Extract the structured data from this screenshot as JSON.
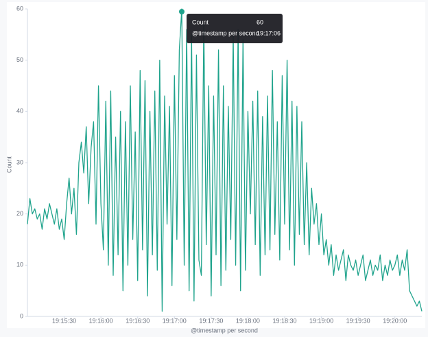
{
  "chart_data": {
    "type": "line",
    "x_label": "@timestamp per second",
    "y_label": "Count",
    "x": [
      "19:15:00",
      "19:15:02",
      "19:15:04",
      "19:15:06",
      "19:15:08",
      "19:15:10",
      "19:15:12",
      "19:15:14",
      "19:15:16",
      "19:15:18",
      "19:15:20",
      "19:15:22",
      "19:15:24",
      "19:15:26",
      "19:15:28",
      "19:15:30",
      "19:15:32",
      "19:15:34",
      "19:15:36",
      "19:15:38",
      "19:15:40",
      "19:15:42",
      "19:15:44",
      "19:15:46",
      "19:15:48",
      "19:15:50",
      "19:15:52",
      "19:15:54",
      "19:15:56",
      "19:15:58",
      "19:16:00",
      "19:16:02",
      "19:16:04",
      "19:16:06",
      "19:16:08",
      "19:16:10",
      "19:16:12",
      "19:16:14",
      "19:16:16",
      "19:16:18",
      "19:16:20",
      "19:16:22",
      "19:16:24",
      "19:16:26",
      "19:16:28",
      "19:16:30",
      "19:16:32",
      "19:16:34",
      "19:16:36",
      "19:16:38",
      "19:16:40",
      "19:16:42",
      "19:16:44",
      "19:16:46",
      "19:16:48",
      "19:16:50",
      "19:16:52",
      "19:16:54",
      "19:16:56",
      "19:16:58",
      "19:17:00",
      "19:17:02",
      "19:17:04",
      "19:17:06",
      "19:17:08",
      "19:17:10",
      "19:17:12",
      "19:17:14",
      "19:17:16",
      "19:17:18",
      "19:17:20",
      "19:17:22",
      "19:17:24",
      "19:17:26",
      "19:17:28",
      "19:17:30",
      "19:17:32",
      "19:17:34",
      "19:17:36",
      "19:17:38",
      "19:17:40",
      "19:17:42",
      "19:17:44",
      "19:17:46",
      "19:17:48",
      "19:17:50",
      "19:17:52",
      "19:17:54",
      "19:17:56",
      "19:17:58",
      "19:18:00",
      "19:18:02",
      "19:18:04",
      "19:18:06",
      "19:18:08",
      "19:18:10",
      "19:18:12",
      "19:18:14",
      "19:18:16",
      "19:18:18",
      "19:18:20",
      "19:18:22",
      "19:18:24",
      "19:18:26",
      "19:18:28",
      "19:18:30",
      "19:18:32",
      "19:18:34",
      "19:18:36",
      "19:18:38",
      "19:18:40",
      "19:18:42",
      "19:18:44",
      "19:18:46",
      "19:18:48",
      "19:18:50",
      "19:18:52",
      "19:18:54",
      "19:18:56",
      "19:18:58",
      "19:19:00",
      "19:19:02",
      "19:19:04",
      "19:19:06",
      "19:19:08",
      "19:19:10",
      "19:19:12",
      "19:19:14",
      "19:19:16",
      "19:19:18",
      "19:19:20",
      "19:19:22",
      "19:19:24",
      "19:19:26",
      "19:19:28",
      "19:19:30",
      "19:19:32",
      "19:19:34",
      "19:19:36",
      "19:19:38",
      "19:19:40",
      "19:19:42",
      "19:19:44",
      "19:19:46",
      "19:19:48",
      "19:19:50",
      "19:19:52",
      "19:19:54",
      "19:19:56",
      "19:19:58",
      "19:20:00",
      "19:20:02",
      "19:20:04",
      "19:20:06",
      "19:20:08",
      "19:20:10",
      "19:20:12",
      "19:20:14",
      "19:20:16",
      "19:20:18",
      "19:20:20",
      "19:20:22"
    ],
    "series": [
      {
        "name": "Count",
        "color": "#1fa38c",
        "values": [
          18,
          23,
          20,
          21,
          19,
          20,
          17,
          21,
          19,
          22,
          20,
          18,
          21,
          17,
          19,
          15,
          22,
          27,
          20,
          25,
          16,
          30,
          34,
          28,
          37,
          22,
          33,
          38,
          18,
          45,
          22,
          13,
          42,
          10,
          44,
          8,
          35,
          12,
          40,
          5,
          38,
          10,
          45,
          15,
          36,
          7,
          48,
          13,
          46,
          4,
          40,
          12,
          44,
          9,
          50,
          1,
          43,
          18,
          41,
          6,
          47,
          15,
          52,
          60,
          10,
          56,
          5,
          55,
          3,
          51,
          11,
          8,
          57,
          14,
          45,
          4,
          43,
          12,
          52,
          6,
          45,
          9,
          41,
          15,
          55,
          10,
          56,
          5,
          54,
          9,
          40,
          20,
          42,
          14,
          44,
          8,
          39,
          12,
          43,
          13,
          48,
          16,
          38,
          11,
          47,
          18,
          50,
          13,
          42,
          10,
          41,
          16,
          38,
          14,
          30,
          12,
          25,
          18,
          22,
          14,
          20,
          12,
          15,
          10,
          14,
          8,
          12,
          9,
          11,
          13,
          7,
          12,
          10,
          9,
          11,
          8,
          10,
          12,
          7,
          9,
          11,
          8,
          10,
          9,
          12,
          7,
          10,
          8,
          11,
          9,
          10,
          12,
          8,
          11,
          9,
          13,
          5,
          4,
          3,
          2,
          3,
          1
        ]
      }
    ],
    "xlim": [
      "19:15:00",
      "19:20:22"
    ],
    "xticks": [
      "19:15:30",
      "19:16:00",
      "19:16:30",
      "19:17:00",
      "19:17:30",
      "19:18:00",
      "19:18:30",
      "19:19:00",
      "19:19:30",
      "19:20:00"
    ],
    "ylim": [
      0,
      60
    ],
    "yticks": [
      0,
      10,
      20,
      30,
      40,
      50,
      60
    ],
    "tooltip": {
      "point": 63,
      "rows": [
        [
          "Count",
          60
        ],
        [
          "@timestamp per second",
          "19:17:06"
        ]
      ]
    }
  }
}
